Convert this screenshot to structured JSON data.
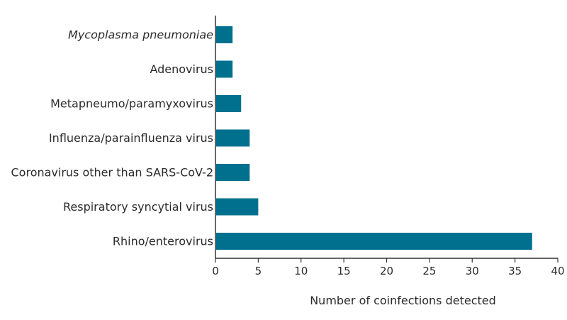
{
  "chart_data": {
    "type": "bar",
    "orientation": "horizontal",
    "categories": [
      "Mycoplasma pneumoniae",
      "Adenovirus",
      "Metapneumo/paramyxovirus",
      "Influenza/parainfluenza virus",
      "Coronavirus other than SARS-CoV-2",
      "Respiratory syncytial virus",
      "Rhino/enterovirus"
    ],
    "italic_categories": [
      "Mycoplasma pneumoniae"
    ],
    "values": [
      2,
      2,
      3,
      4,
      4,
      5,
      37
    ],
    "xlabel": "Number of coinfections detected",
    "ylabel": "",
    "title": "",
    "xlim": [
      0,
      40
    ],
    "xticks": [
      0,
      5,
      10,
      15,
      20,
      25,
      30,
      35,
      40
    ],
    "grid": false,
    "bar_color": "#00708f",
    "axis_color": "#333333"
  }
}
